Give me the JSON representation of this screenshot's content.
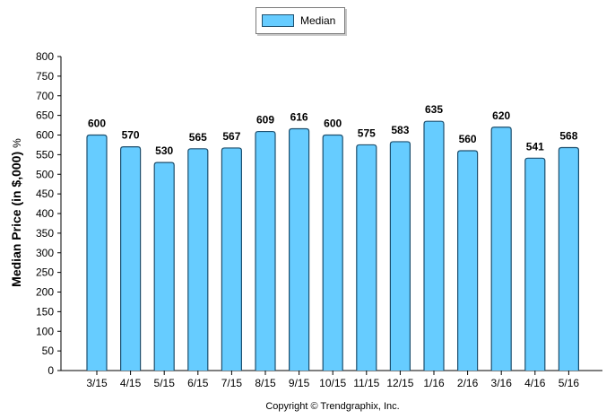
{
  "legend": {
    "label": "Median"
  },
  "copyright": "Copyright © Trendgraphix, Inc.",
  "colors": {
    "bar_fill": "#66ccff",
    "bar_stroke": "#1d4f6e",
    "axis": "#000000"
  },
  "chart_data": {
    "type": "bar",
    "categories": [
      "3/15",
      "4/15",
      "5/15",
      "6/15",
      "7/15",
      "8/15",
      "9/15",
      "10/15",
      "11/15",
      "12/15",
      "1/16",
      "2/16",
      "3/16",
      "4/16",
      "5/16"
    ],
    "series": [
      {
        "name": "Median",
        "values": [
          600,
          570,
          530,
          565,
          567,
          609,
          616,
          600,
          575,
          583,
          635,
          560,
          620,
          541,
          568
        ]
      }
    ],
    "ylabel": "Median Price (in $,000)",
    "ylabel_unit": "%",
    "xlabel": "",
    "ylim": [
      0,
      800
    ],
    "yticks": [
      0,
      50,
      100,
      150,
      200,
      250,
      300,
      350,
      400,
      450,
      500,
      550,
      600,
      650,
      700,
      750,
      800
    ],
    "grid": false,
    "legend_position": "top-center",
    "data_labels": true
  }
}
